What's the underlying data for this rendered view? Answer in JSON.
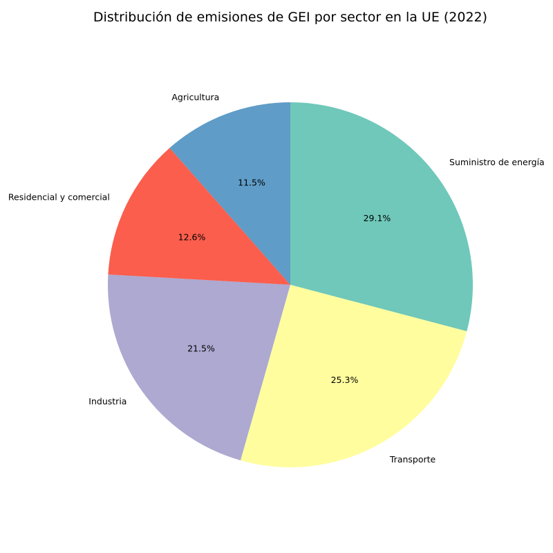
{
  "chart_data": {
    "type": "pie",
    "title": "Distribución de emisiones de GEI por sector en la UE (2022)",
    "start_angle_deg": 90,
    "direction": "clockwise",
    "slices": [
      {
        "label": "Suministro de energía",
        "value": 29.1,
        "pct_label": "29.1%",
        "color": "#6fc8b9"
      },
      {
        "label": "Transporte",
        "value": 25.3,
        "pct_label": "25.3%",
        "color": "#fffd9e"
      },
      {
        "label": "Industria",
        "value": 21.5,
        "pct_label": "21.5%",
        "color": "#ada9d1"
      },
      {
        "label": "Residencial y comercial",
        "value": 12.6,
        "pct_label": "12.6%",
        "color": "#fb5e4d"
      },
      {
        "label": "Agricultura",
        "value": 11.5,
        "pct_label": "11.5%",
        "color": "#5f9cc7"
      }
    ]
  }
}
